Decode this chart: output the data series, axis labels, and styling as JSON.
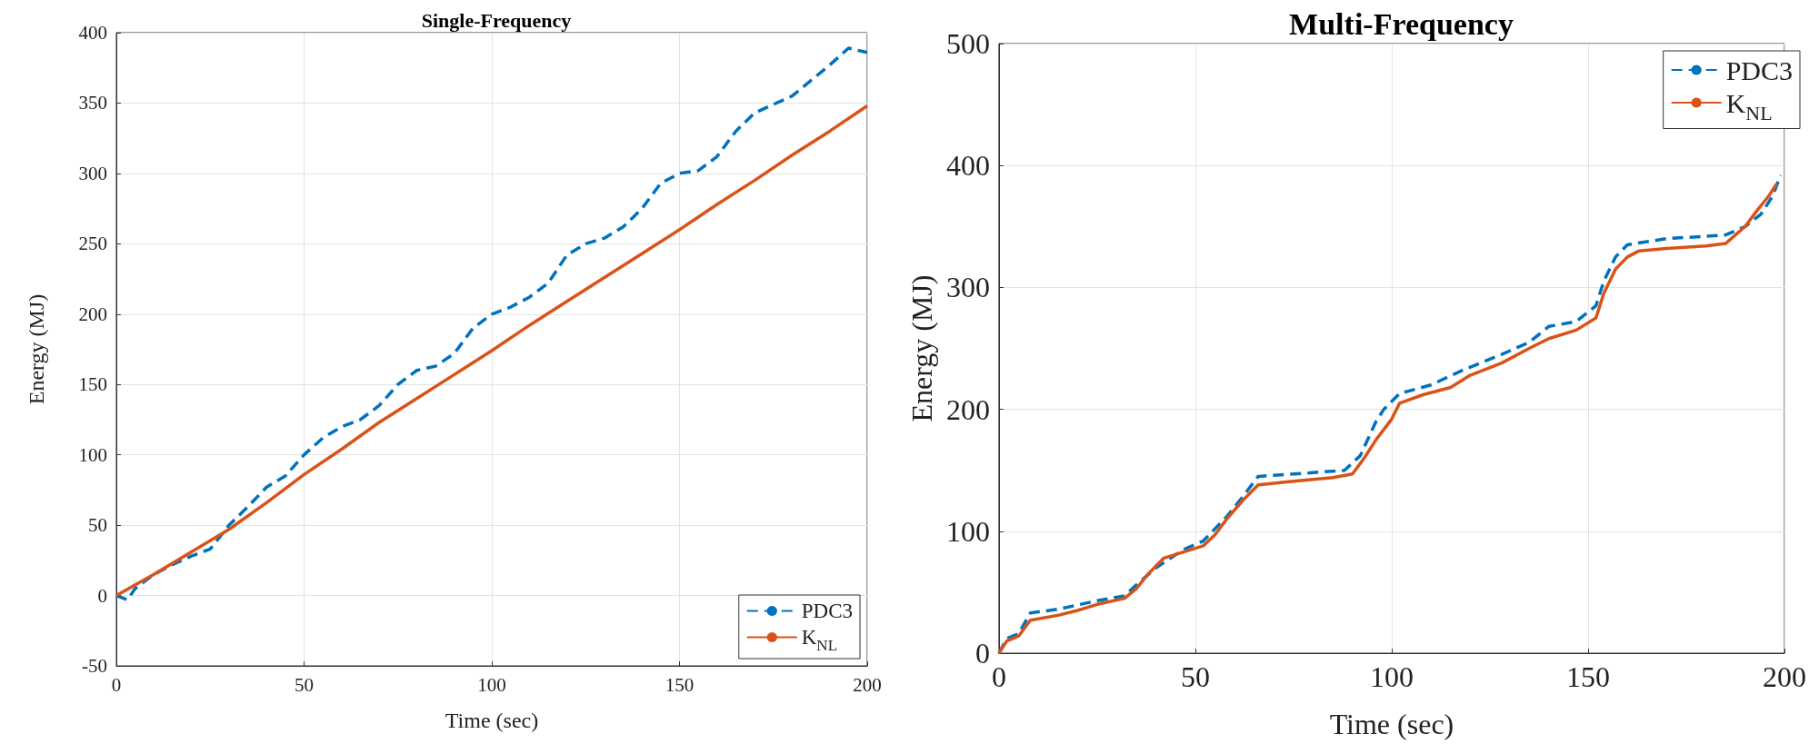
{
  "chart_data": [
    {
      "type": "line",
      "title": "Single-Frequency",
      "xlabel": "Time (sec)",
      "ylabel": "Energy (MJ)",
      "xlim": [
        0,
        200
      ],
      "xticks": [
        0,
        50,
        100,
        150,
        200
      ],
      "ylim": [
        -50,
        400
      ],
      "yticks": [
        -50,
        0,
        50,
        100,
        150,
        200,
        250,
        300,
        350,
        400
      ],
      "grid": true,
      "legend": "bottom right",
      "marker": "none",
      "series": [
        {
          "name": "PDC3",
          "color": "#0072bd",
          "line_style": "dashed",
          "x": [
            0,
            3,
            5,
            10,
            15,
            20,
            25,
            30,
            35,
            40,
            45,
            50,
            55,
            60,
            65,
            70,
            75,
            80,
            85,
            90,
            95,
            100,
            105,
            110,
            115,
            120,
            125,
            130,
            135,
            140,
            145,
            150,
            155,
            160,
            165,
            170,
            175,
            180,
            185,
            190,
            195,
            200
          ],
          "values": [
            0,
            -3,
            5,
            15,
            22,
            28,
            33,
            50,
            63,
            77,
            85,
            100,
            112,
            120,
            125,
            135,
            150,
            160,
            163,
            172,
            190,
            200,
            205,
            212,
            222,
            242,
            250,
            254,
            262,
            275,
            293,
            300,
            302,
            312,
            330,
            343,
            349,
            355,
            366,
            377,
            389,
            386
          ]
        },
        {
          "name": "K$_{NL}$",
          "color": "#d95319",
          "line_style": "solid",
          "x": [
            0,
            10,
            20,
            30,
            40,
            50,
            60,
            70,
            80,
            90,
            100,
            110,
            120,
            130,
            140,
            150,
            160,
            170,
            180,
            190,
            200
          ],
          "values": [
            0,
            15,
            31,
            47,
            66,
            86,
            104,
            123,
            140,
            157,
            174,
            192,
            209,
            226,
            243,
            260,
            278,
            295,
            313,
            330,
            348
          ]
        }
      ]
    },
    {
      "type": "line",
      "title": "Multi-Frequency",
      "xlabel": "Time (sec)",
      "ylabel": "Energy (MJ)",
      "xlim": [
        0,
        200
      ],
      "xticks": [
        0,
        50,
        100,
        150,
        200
      ],
      "ylim": [
        0,
        500
      ],
      "yticks": [
        0,
        100,
        200,
        300,
        400,
        500
      ],
      "grid": true,
      "legend": "top right",
      "marker": "none",
      "series": [
        {
          "name": "PDC3",
          "color": "#0072bd",
          "line_style": "dashed",
          "x": [
            0,
            2,
            5,
            8,
            15,
            25,
            32,
            35,
            40,
            47,
            52,
            58,
            62,
            66,
            75,
            88,
            92,
            96,
            98,
            102,
            110,
            118,
            128,
            135,
            140,
            147,
            152,
            154,
            157,
            160,
            170,
            185,
            190,
            194,
            197,
            199
          ],
          "values": [
            0,
            12,
            16,
            33,
            36,
            43,
            47,
            56,
            70,
            85,
            92,
            112,
            128,
            145,
            147,
            150,
            162,
            190,
            200,
            213,
            220,
            232,
            245,
            255,
            268,
            272,
            285,
            305,
            325,
            335,
            340,
            343,
            350,
            360,
            375,
            392
          ]
        },
        {
          "name": "K$_{NL}$",
          "color": "#d95319",
          "line_style": "solid",
          "x": [
            0,
            2,
            5,
            8,
            15,
            20,
            25,
            32,
            35,
            38,
            42,
            47,
            52,
            55,
            58,
            62,
            66,
            75,
            85,
            90,
            93,
            96,
            100,
            102,
            108,
            115,
            120,
            128,
            135,
            140,
            147,
            152,
            154,
            157,
            160,
            163,
            170,
            180,
            185,
            190,
            193,
            196,
            198
          ],
          "values": [
            0,
            10,
            14,
            27,
            31,
            35,
            40,
            45,
            53,
            65,
            78,
            83,
            88,
            97,
            110,
            125,
            138,
            141,
            144,
            147,
            160,
            175,
            192,
            205,
            212,
            218,
            228,
            238,
            250,
            258,
            265,
            275,
            295,
            315,
            325,
            330,
            332,
            334,
            336,
            350,
            363,
            375,
            385
          ]
        }
      ]
    }
  ]
}
